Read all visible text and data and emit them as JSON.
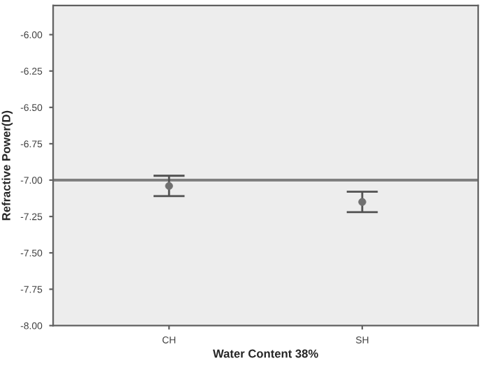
{
  "chart_data": {
    "type": "scatter",
    "xlabel": "Water Content 38%",
    "ylabel": "Refractive Power(D)",
    "categories": [
      "CH",
      "SH"
    ],
    "series": [
      {
        "color": "#707070",
        "values": [
          -7.04,
          -7.15
        ],
        "errors": [
          [
            -7.11,
            -6.97
          ],
          [
            -7.22,
            -7.08
          ]
        ]
      }
    ],
    "marker": "circle",
    "ylim": [
      -8.0,
      -5.8
    ],
    "yticks": [
      {
        "value": -6.0,
        "label": "-6.00"
      },
      {
        "value": -6.25,
        "label": "-6.25"
      },
      {
        "value": -6.5,
        "label": "-6.50"
      },
      {
        "value": -6.75,
        "label": "-6.75"
      },
      {
        "value": -7.0,
        "label": "-7.00"
      },
      {
        "value": -7.25,
        "label": "-7.25"
      },
      {
        "value": -7.5,
        "label": "-7.50"
      },
      {
        "value": -7.75,
        "label": "-7.75"
      },
      {
        "value": -8.0,
        "label": "-8.00"
      }
    ],
    "ref_lines": [
      {
        "axis": "y",
        "value": -7.0,
        "color": "#808080"
      }
    ],
    "grid": false,
    "legend": false
  }
}
